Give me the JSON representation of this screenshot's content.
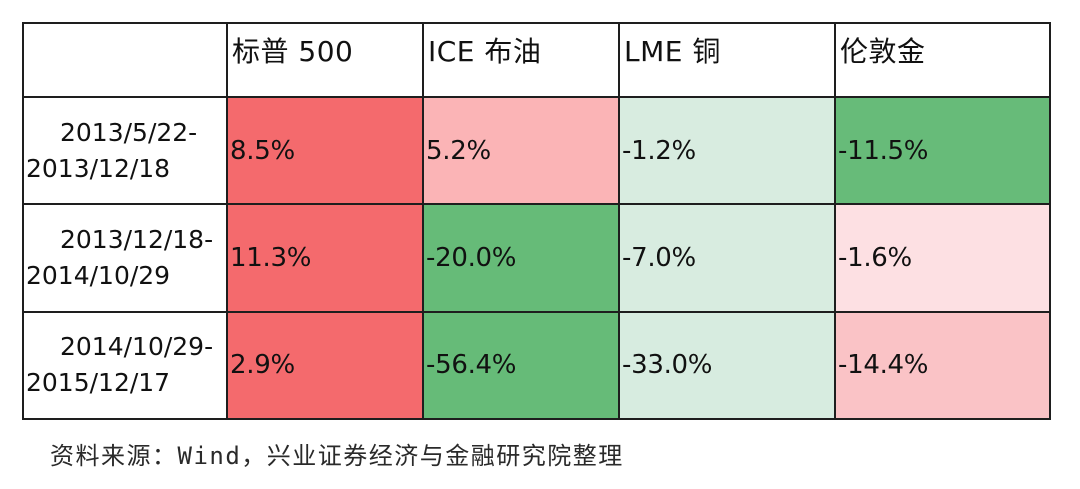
{
  "table": {
    "header": [
      "",
      "标普 500",
      "ICE 布油",
      "LME 铜",
      "伦敦金"
    ],
    "rows": [
      {
        "period_line1": "2013/5/22-",
        "period_line2": "2013/12/18",
        "values": [
          "8.5%",
          "5.2%",
          "-1.2%",
          "-11.5%"
        ],
        "colors": [
          "#f46a6d",
          "#fbb4b6",
          "#d8ece0",
          "#67bb79"
        ]
      },
      {
        "period_line1": "2013/12/18-",
        "period_line2": "2014/10/29",
        "values": [
          "11.3%",
          "-20.0%",
          "-7.0%",
          "-1.6%"
        ],
        "colors": [
          "#f46a6d",
          "#66bb78",
          "#d8ece0",
          "#fde0e3"
        ]
      },
      {
        "period_line1": "2014/10/29-",
        "period_line2": "2015/12/17",
        "values": [
          "2.9%",
          "-56.4%",
          "-33.0%",
          "-14.4%"
        ],
        "colors": [
          "#f46a6d",
          "#66bb78",
          "#d7ece0",
          "#fac3c6"
        ]
      }
    ]
  },
  "source_note": "资料来源：Wind，兴业证券经济与金融研究院整理"
}
